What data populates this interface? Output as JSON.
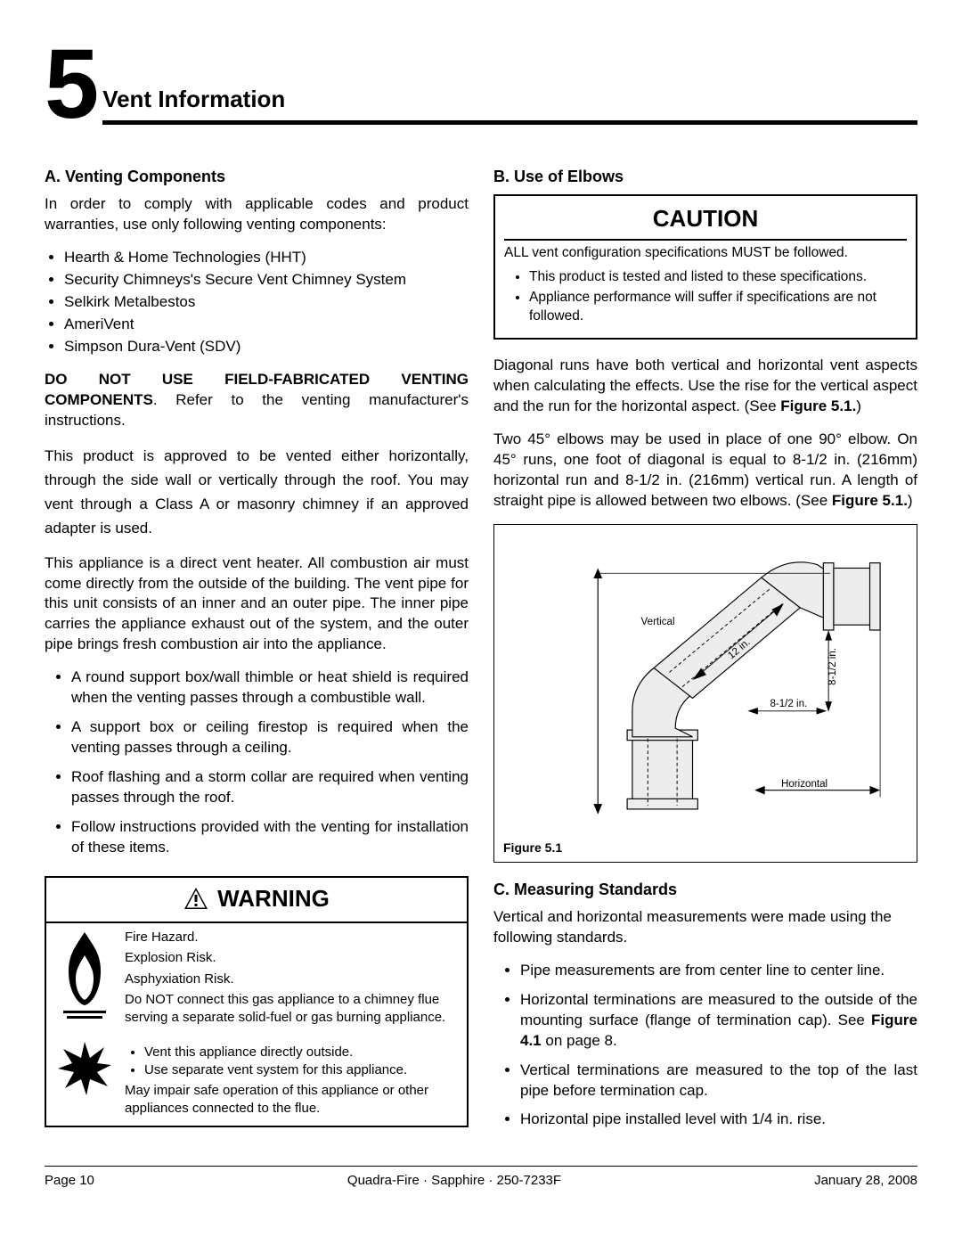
{
  "chapter": {
    "number": "5",
    "title": "Vent Information"
  },
  "sectionA": {
    "heading": "A. Venting Components",
    "intro": "In order to comply with applicable codes and product warranties, use only  following venting components:",
    "list": [
      "Hearth & Home Technologies (HHT)",
      "Security Chimneys's Secure Vent Chimney System",
      "Selkirk Metalbestos",
      "AmeriVent",
      "Simpson Dura-Vent (SDV)"
    ],
    "noFab_bold": "DO NOT USE FIELD-FABRICATED VENTING COMPONENTS",
    "noFab_rest": ". Refer to the venting manufacturer's instructions.",
    "p2": "This product is approved to be vented either horizontally, through the side wall or vertically through the roof. You may vent through a Class A or masonry chimney if an approved adapter is used.",
    "p3": "This appliance is a direct vent heater.  All combustion air must come directly from the outside of the building.  The vent pipe for this unit consists of an inner and an outer pipe.  The inner pipe carries the appliance exhaust out of the system, and the outer pipe brings fresh combustion air into the appliance.",
    "bullets": [
      "A round support box/wall thimble or heat shield is required when the venting passes through a combustible wall.",
      "A support box or ceiling firestop is required when the venting passes through a ceiling.",
      "Roof flashing and a storm collar are required when venting passes through the roof.",
      "Follow instructions provided with the venting for installation of these items."
    ]
  },
  "warning": {
    "title": "WARNING",
    "lines1": [
      "Fire Hazard.",
      "Explosion Risk.",
      "Asphyxiation Risk."
    ],
    "p1": "Do NOT connect this gas appliance to a chimney flue serving a separate solid-fuel or gas burning appliance.",
    "bullets": [
      "Vent this appliance directly outside.",
      "Use separate vent system for this appliance."
    ],
    "p2": "May impair safe operation of this appliance or other appliances connected to the flue."
  },
  "sectionB": {
    "heading": "B. Use of Elbows",
    "caution_title": "CAUTION",
    "caution_lead": "ALL vent configuration specifications MUST be followed.",
    "caution_bullets": [
      "This product is tested and listed to these specifications.",
      "Appliance performance will suffer if specifications are not  followed."
    ],
    "p1a": "Diagonal runs have both vertical and horizontal vent aspects when calculating the effects. Use the rise for the vertical aspect and the run for the horizontal aspect. (See ",
    "p1b": "Figure 5.1.",
    "p1c": ")",
    "p2a": "Two 45° elbows may be used in place of one 90° elbow. On 45° runs, one foot of diagonal is equal to 8-1/2 in. (216mm) horizontal run and 8-1/2 in. (216mm) vertical run. A length of straight pipe is allowed between two elbows. (See ",
    "p2b": "Figure 5.1.",
    "p2c": ")"
  },
  "figure": {
    "caption": "Figure 5.1",
    "label_vertical": "Vertical",
    "label_horizontal": "Horizontal",
    "label_812_h": "8-1/2 in.",
    "label_812_v": "8-1/2 in.",
    "label_12in": "12 in.",
    "colors": {
      "pipe_fill": "#ededed",
      "line": "#000000"
    }
  },
  "sectionC": {
    "heading": "C. Measuring Standards",
    "intro": "Vertical and horizontal measurements were made using the following standards.",
    "bullets": [
      "Pipe measurements are from center line to center line.",
      "Horizontal terminations are measured to the outside of the mounting surface (flange of termination cap). See |Figure 4.1| on page 8.",
      "Vertical terminations are measured to the top of the last pipe before termination cap.",
      "Horizontal pipe installed level with 1/4 in. rise."
    ]
  },
  "footer": {
    "left": "Page  10",
    "center": "Quadra-Fire · Sapphire · 250-7233F",
    "right": "January 28, 2008"
  }
}
